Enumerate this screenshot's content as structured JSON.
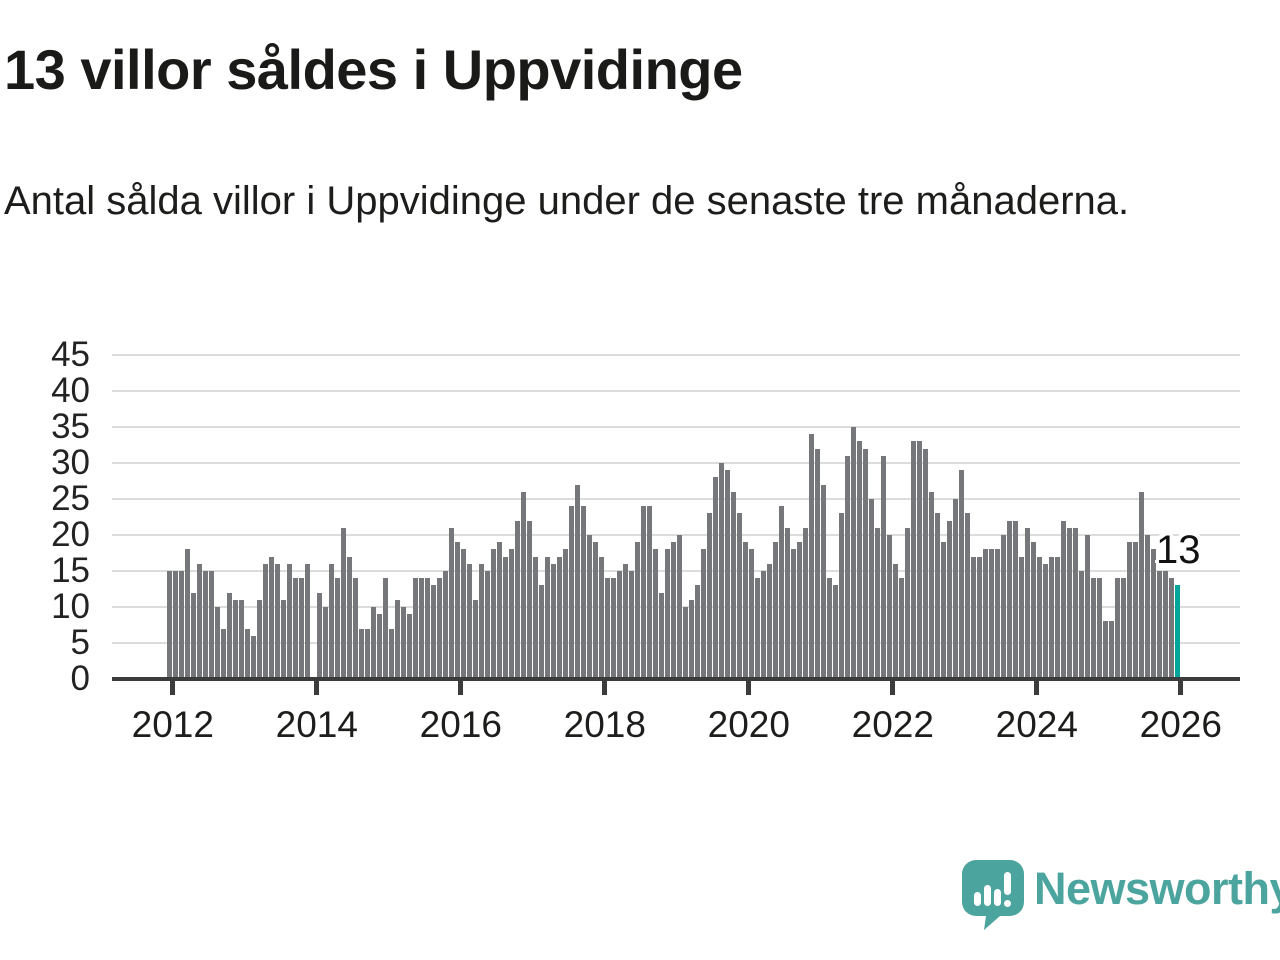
{
  "header": {
    "title": "13 villor såldes i Uppvidinge",
    "subtitle": "Antal sålda villor i Uppvidinge under de senaste tre månaderna."
  },
  "annotation": {
    "last_value_label": "13"
  },
  "footer": {
    "brand": "Newsworthy",
    "logo_icon": "newsworthy-speech-bubble-bar-chart-icon"
  },
  "colors": {
    "bar": "#76777B",
    "highlight": "#00A49C",
    "grid": "#DCDCDC",
    "axis": "#3B3B3B",
    "text": "#1A1A18",
    "brand": "#4BA49D"
  },
  "chart_data": {
    "type": "bar",
    "title": "13 villor såldes i Uppvidinge",
    "subtitle": "Antal sålda villor i Uppvidinge under de senaste tre månaderna.",
    "xlabel": "",
    "ylabel": "",
    "x_start": "2012-01",
    "x_end": "2026-01",
    "x_frequency": "monthly",
    "ylim": [
      0,
      45
    ],
    "grid": true,
    "y_ticks": [
      0,
      5,
      10,
      15,
      20,
      25,
      30,
      35,
      40,
      45
    ],
    "x_tick_labels": [
      "2012",
      "2014",
      "2016",
      "2018",
      "2020",
      "2022",
      "2024",
      "2026"
    ],
    "highlight_last_bar": true,
    "last_bar_value": 13,
    "values": [
      15,
      15,
      15,
      18,
      12,
      16,
      15,
      15,
      10,
      7,
      12,
      11,
      11,
      7,
      6,
      11,
      16,
      17,
      16,
      11,
      16,
      14,
      14,
      16,
      0,
      12,
      10,
      16,
      14,
      21,
      17,
      14,
      7,
      7,
      10,
      9,
      14,
      7,
      11,
      10,
      9,
      14,
      14,
      14,
      13,
      14,
      15,
      21,
      19,
      18,
      16,
      11,
      16,
      15,
      18,
      19,
      17,
      18,
      22,
      26,
      22,
      17,
      13,
      17,
      16,
      17,
      18,
      24,
      27,
      24,
      20,
      19,
      17,
      14,
      14,
      15,
      16,
      15,
      19,
      24,
      24,
      18,
      12,
      18,
      19,
      20,
      10,
      11,
      13,
      18,
      23,
      28,
      30,
      29,
      26,
      23,
      19,
      18,
      14,
      15,
      16,
      19,
      24,
      21,
      18,
      19,
      21,
      34,
      32,
      27,
      14,
      13,
      23,
      31,
      35,
      33,
      32,
      25,
      21,
      31,
      20,
      16,
      14,
      21,
      33,
      33,
      32,
      26,
      23,
      19,
      22,
      25,
      29,
      23,
      17,
      17,
      18,
      18,
      18,
      20,
      22,
      22,
      17,
      21,
      19,
      17,
      16,
      17,
      17,
      22,
      21,
      21,
      15,
      20,
      14,
      14,
      8,
      8,
      14,
      14,
      19,
      19,
      26,
      20,
      18,
      15,
      15,
      14,
      13
    ]
  }
}
